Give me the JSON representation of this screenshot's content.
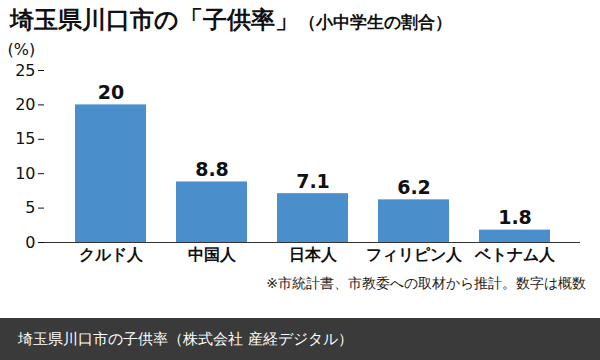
{
  "chart_data": {
    "type": "bar",
    "title": "埼玉県川口市の「子供率」",
    "subtitle": "（小中学生の割合）",
    "ylabel": "(%)",
    "note": "※市統計書、市教委への取材から推計。数字は概数",
    "caption": "埼玉県川口市の子供率（株式会社 産経デジタル）",
    "categories": [
      "クルド人",
      "中国人",
      "日本人",
      "フィリピン人",
      "ベトナム人"
    ],
    "values": [
      20,
      8.8,
      7.1,
      6.2,
      1.8
    ],
    "color": "#4a8fcc",
    "ylim": [
      0,
      25
    ],
    "yticks": [
      0,
      5,
      10,
      15,
      20,
      25
    ],
    "grid": false,
    "data_labels": true
  }
}
